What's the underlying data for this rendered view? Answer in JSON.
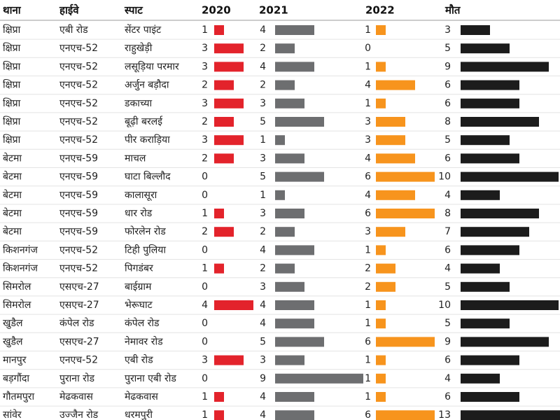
{
  "table": {
    "headers": [
      "थाना",
      "हाईवे",
      "स्पाट",
      "2020",
      "2021",
      "2022",
      "मौत"
    ],
    "rows": [
      [
        "क्षिप्रा",
        "एबी रोड",
        "सेंटर पाइंट",
        1,
        4,
        1,
        3
      ],
      [
        "क्षिप्रा",
        "एनएच-52",
        "राहुखेड़ी",
        3,
        2,
        0,
        5
      ],
      [
        "क्षिप्रा",
        "एनएच-52",
        "लसूड़िया परमार",
        3,
        4,
        1,
        9
      ],
      [
        "क्षिप्रा",
        "एनएच-52",
        "अर्जुन बड़ौदा",
        2,
        2,
        4,
        6
      ],
      [
        "क्षिप्रा",
        "एनएच-52",
        "डकाच्या",
        3,
        3,
        1,
        6
      ],
      [
        "क्षिप्रा",
        "एनएच-52",
        "बूढ़ी बरलई",
        2,
        5,
        3,
        8
      ],
      [
        "क्षिप्रा",
        "एनएच-52",
        "पीर कराड़िया",
        3,
        1,
        3,
        5
      ],
      [
        "बेटमा",
        "एनएच-59",
        "माचल",
        2,
        3,
        4,
        6
      ],
      [
        "बेटमा",
        "एनएच-59",
        "घाटा बिल्लौद",
        0,
        5,
        6,
        10
      ],
      [
        "बेटमा",
        "एनएच-59",
        "कालासूरा",
        0,
        1,
        4,
        4
      ],
      [
        "बेटमा",
        "एनएच-59",
        "धार रोड",
        1,
        3,
        6,
        8
      ],
      [
        "बेटमा",
        "एनएच-59",
        "फोरलेन रोड",
        2,
        2,
        3,
        7
      ],
      [
        "किशनगंज",
        "एनएच-52",
        "टिही पुलिया",
        0,
        4,
        1,
        6
      ],
      [
        "किशनगंज",
        "एनएच-52",
        "पिगडंबर",
        1,
        2,
        2,
        4
      ],
      [
        "सिमरोल",
        "एसएच-27",
        "बाईग्राम",
        0,
        3,
        2,
        5
      ],
      [
        "सिमरोल",
        "एसएच-27",
        "भेरूघाट",
        4,
        4,
        1,
        10
      ],
      [
        "खुडैल",
        "कंपेल रोड",
        "कंपेल रोड",
        0,
        4,
        1,
        5
      ],
      [
        "खुडैल",
        "एसएच-27",
        "नेमावर रोड",
        0,
        5,
        6,
        9
      ],
      [
        "मानपुर",
        "एनएच-52",
        "एबी रोड",
        3,
        3,
        1,
        6
      ],
      [
        "बड़गौंदा",
        "पुराना रोड",
        "पुराना एबी रोड",
        0,
        9,
        1,
        4
      ],
      [
        "गौतमपुरा",
        "मेढकवास",
        "मेढकवास",
        1,
        4,
        1,
        6
      ],
      [
        "सांवेर",
        "उज्जैन रोड",
        "धरमपुरी",
        1,
        4,
        6,
        13
      ]
    ],
    "bar_colors": [
      "#e3232b",
      "#6d6e70",
      "#f7941d",
      "#1c1c1c"
    ]
  }
}
